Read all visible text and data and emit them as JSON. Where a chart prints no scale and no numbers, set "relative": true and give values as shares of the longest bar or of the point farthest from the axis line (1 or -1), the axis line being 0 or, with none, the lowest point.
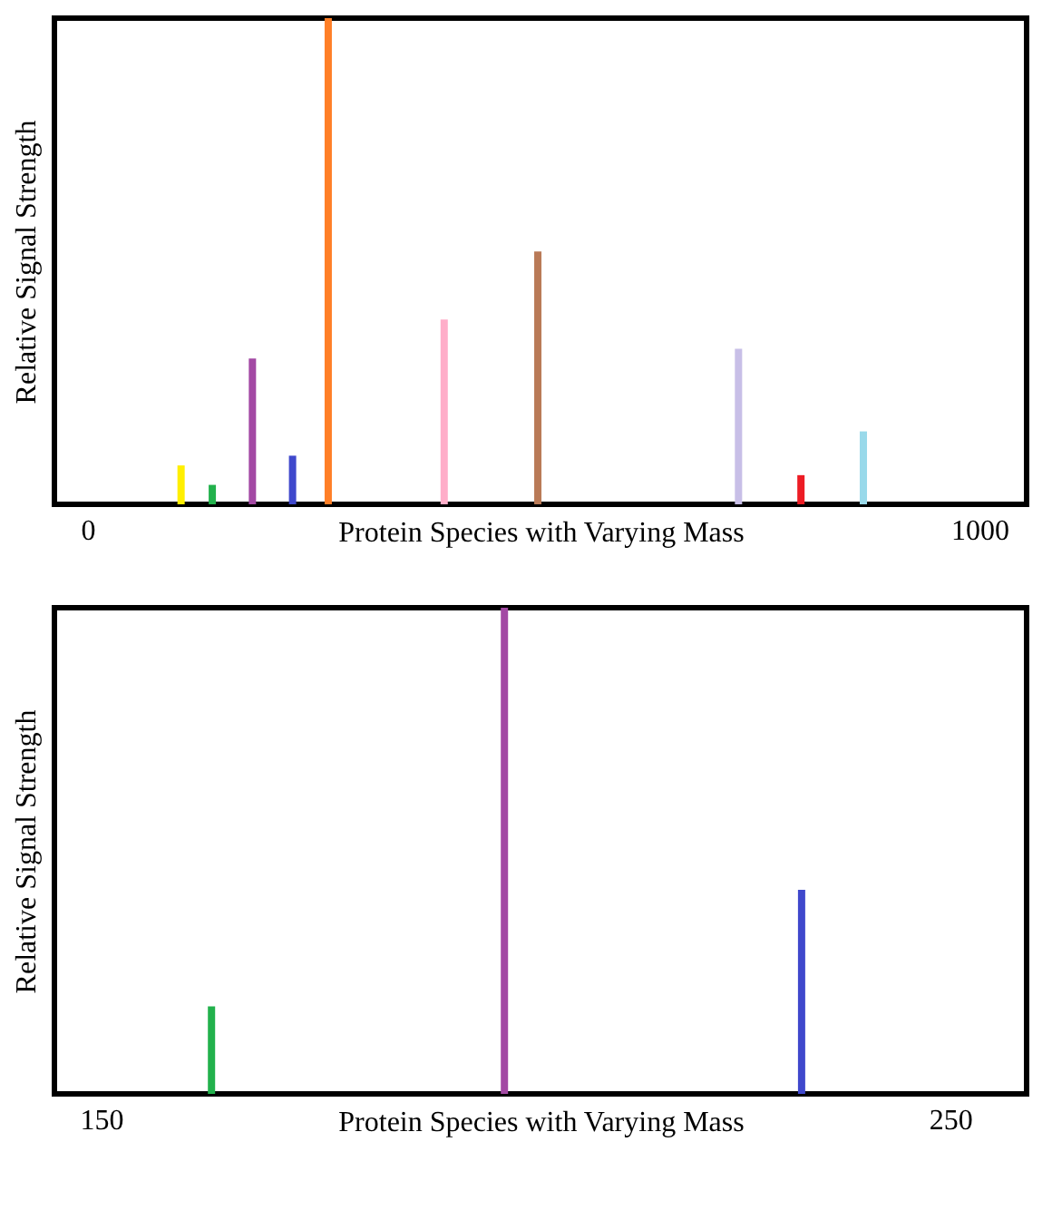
{
  "chart_data": [
    {
      "type": "bar",
      "relative": true,
      "xlabel": "Protein Species with Varying Mass",
      "ylabel": "Relative Signal Strength",
      "x": [
        105,
        140,
        185,
        230,
        270,
        400,
        505,
        730,
        800,
        870
      ],
      "values": [
        0.08,
        0.04,
        0.3,
        0.1,
        1,
        0.38,
        0.52,
        0.32,
        0.06,
        0.15
      ],
      "colors": [
        "#ffef00",
        "#22b14c",
        "#a349a4",
        "#3f48cc",
        "#ff7f27",
        "#ffaec9",
        "#b97a57",
        "#c8bfe7",
        "#ed1c24",
        "#99d9ea"
      ],
      "xlim": [
        -37,
        1053
      ],
      "xticks": [
        0,
        1000
      ],
      "tick_labels": "x",
      "grid": false,
      "legend": false
    },
    {
      "type": "bar",
      "relative": true,
      "xlabel": "Protein Species with Varying Mass",
      "ylabel": "Relative Signal Strength",
      "x": [
        163,
        197.5,
        232.5
      ],
      "values": [
        0.18,
        1,
        0.42
      ],
      "colors": [
        "#22b14c",
        "#a349a4",
        "#3f48cc"
      ],
      "xlim": [
        144.5,
        259
      ],
      "xticks": [
        150,
        250
      ],
      "tick_labels": "x",
      "grid": false,
      "legend": false
    }
  ]
}
